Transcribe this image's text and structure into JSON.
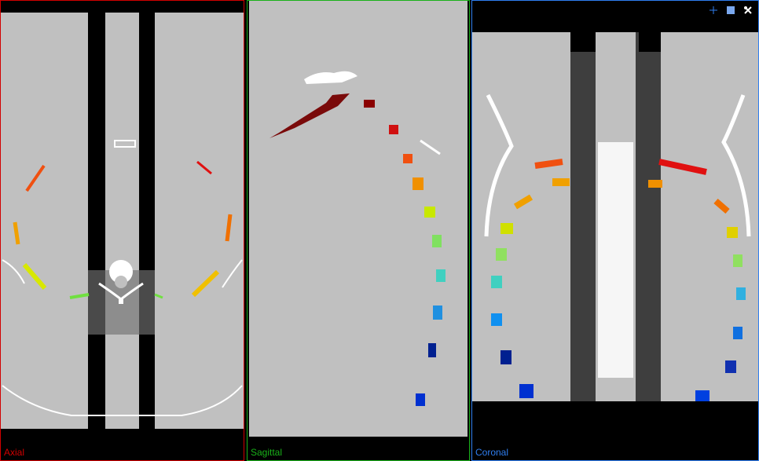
{
  "viewports": {
    "axial": {
      "label": "Axial",
      "color": "#d10000"
    },
    "sagittal": {
      "label": "Sagittal",
      "color": "#19b119"
    },
    "coronal": {
      "label": "Coronal",
      "color": "#2f7ef0"
    }
  },
  "toolbar": {
    "icons": [
      "add-crosshair-icon",
      "maximize-square-icon",
      "settings-tools-icon"
    ]
  },
  "colors": {
    "tissue_gray": "#c0c0c0",
    "bone_white": "#ffffff",
    "background": "#000000",
    "shadow_gray": "#3e3e3e"
  }
}
